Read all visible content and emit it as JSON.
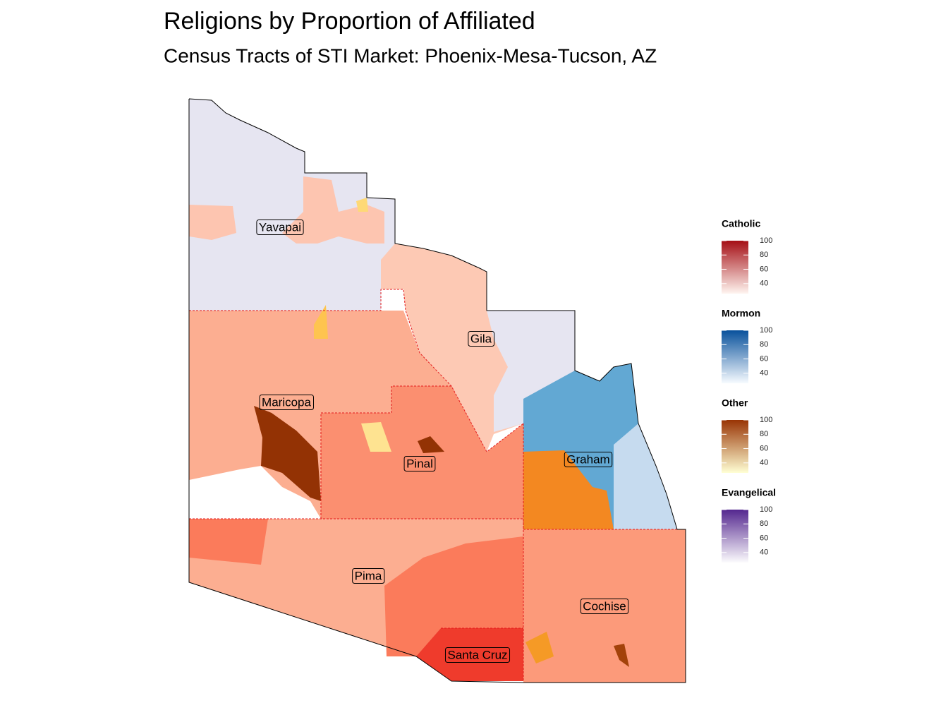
{
  "header": {
    "title": "Religions by Proportion of Affiliated",
    "subtitle": "Census Tracts of STI Market: Phoenix-Mesa-Tucson, AZ"
  },
  "counties": [
    {
      "label": "Yavapai"
    },
    {
      "label": "Gila"
    },
    {
      "label": "Maricopa"
    },
    {
      "label": "Pinal"
    },
    {
      "label": "Graham"
    },
    {
      "label": "Pima"
    },
    {
      "label": "Cochise"
    },
    {
      "label": "Santa Cruz"
    }
  ],
  "legends": [
    {
      "title": "Catholic",
      "colors": [
        "#fff5f0",
        "#a50f15"
      ],
      "lim": [
        26,
        100
      ],
      "ticks": [
        100,
        80,
        60,
        40
      ]
    },
    {
      "title": "Mormon",
      "colors": [
        "#f7fbff",
        "#08519c"
      ],
      "lim": [
        26,
        100
      ],
      "ticks": [
        100,
        80,
        60,
        40
      ]
    },
    {
      "title": "Other",
      "colors": [
        "#ffffd4",
        "#993404"
      ],
      "lim": [
        26,
        100
      ],
      "ticks": [
        100,
        80,
        60,
        40
      ]
    },
    {
      "title": "Evangelical",
      "colors": [
        "#fcfbfd",
        "#54278f"
      ],
      "lim": [
        26,
        100
      ],
      "ticks": [
        100,
        80,
        60,
        40
      ]
    }
  ]
}
